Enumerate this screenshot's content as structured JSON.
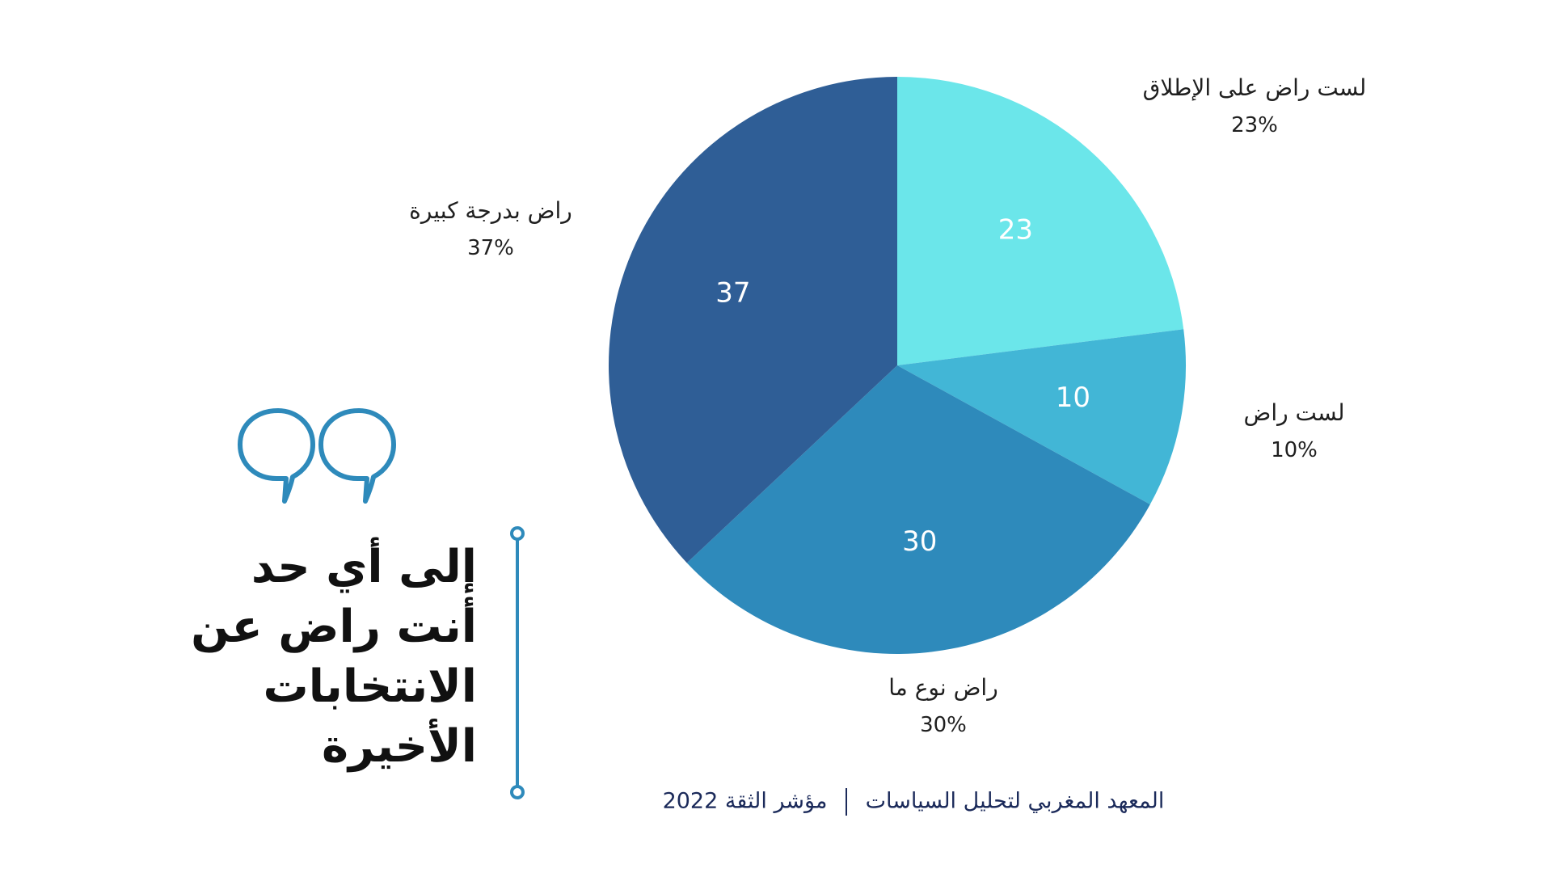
{
  "chart_data": {
    "type": "pie",
    "slices": [
      {
        "label": "لست راض على الإطلاق",
        "value": 23,
        "percent_label": "23%",
        "color": "#6be6ea"
      },
      {
        "label": "لست راض",
        "value": 10,
        "percent_label": "10%",
        "color": "#42b6d6"
      },
      {
        "label": "راض نوع ما",
        "value": 30,
        "percent_label": "30%",
        "color": "#2e8abb"
      },
      {
        "label": "راض بدرجة كبيرة",
        "value": 37,
        "percent_label": "37%",
        "color": "#2f5e96"
      }
    ]
  },
  "question": {
    "lines": [
      "إلى أي حد",
      "أنت راض عن",
      "الانتخابات",
      "الأخيرة"
    ]
  },
  "footer": {
    "institute": "المعهد المغربي لتحليل السياسات",
    "index": "مؤشر الثقة 2022"
  },
  "accent_color": "#2e8abb",
  "icons": {
    "quote": "quote-marks-icon"
  }
}
